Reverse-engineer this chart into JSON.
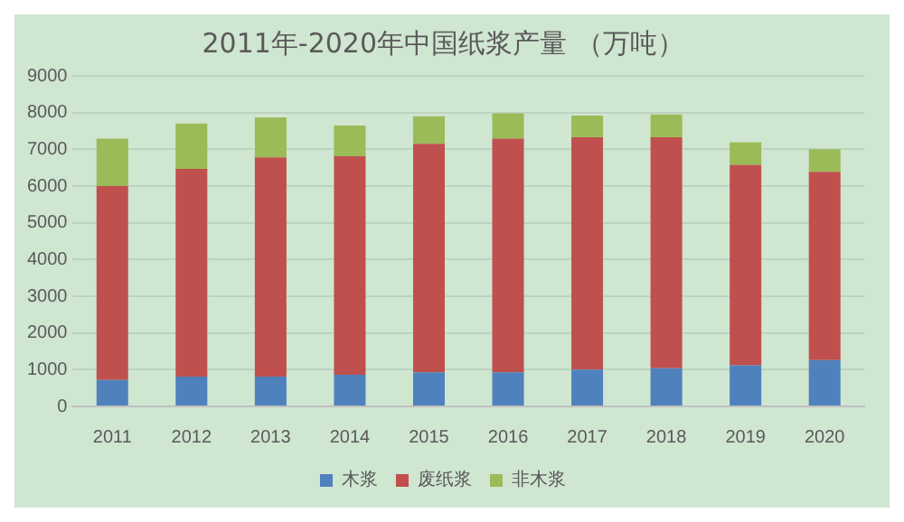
{
  "chart_data": {
    "type": "bar",
    "title": "2011年-2020年中国纸浆产量 （万吨）",
    "stacked": true,
    "categories": [
      "2011",
      "2012",
      "2013",
      "2014",
      "2015",
      "2016",
      "2017",
      "2018",
      "2019",
      "2020"
    ],
    "series": [
      {
        "name": "木浆",
        "color": "#4f81bd",
        "values": [
          720,
          810,
          810,
          860,
          930,
          930,
          1000,
          1040,
          1120,
          1260
        ]
      },
      {
        "name": "废纸浆",
        "color": "#c0504d",
        "values": [
          5280,
          5660,
          5970,
          5950,
          6220,
          6360,
          6330,
          6290,
          5460,
          5130
        ]
      },
      {
        "name": "非木浆",
        "color": "#9bbb59",
        "values": [
          1290,
          1230,
          1090,
          840,
          750,
          690,
          590,
          620,
          610,
          610
        ]
      }
    ],
    "ylim": [
      0,
      9000
    ],
    "yticks": [
      0,
      1000,
      2000,
      3000,
      4000,
      5000,
      6000,
      7000,
      8000,
      9000
    ],
    "grid": "y",
    "legend": "bottom"
  }
}
